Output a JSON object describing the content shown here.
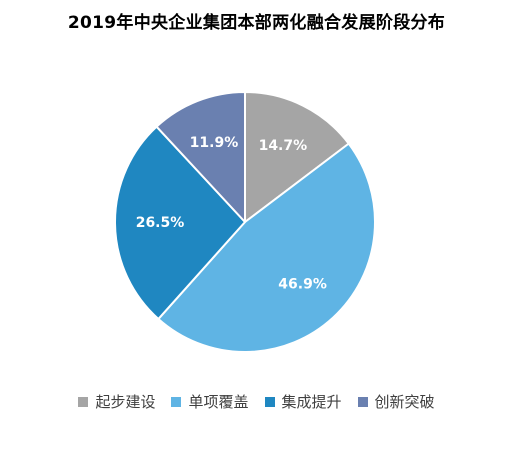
{
  "chart_data": {
    "type": "pie",
    "title": "2019年中央企业集团本部两化融合发展阶段分布",
    "series": [
      {
        "name": "起步建设",
        "value": 14.7,
        "label": "14.7%",
        "color": "#a5a5a5"
      },
      {
        "name": "单项覆盖",
        "value": 46.9,
        "label": "46.9%",
        "color": "#5fb4e4"
      },
      {
        "name": "集成提升",
        "value": 26.5,
        "label": "26.5%",
        "color": "#1f87c1"
      },
      {
        "name": "创新突破",
        "value": 11.9,
        "label": "11.9%",
        "color": "#6a80b0"
      }
    ],
    "start_angle_deg": 0,
    "direction": "clockwise",
    "legend_position": "bottom"
  }
}
